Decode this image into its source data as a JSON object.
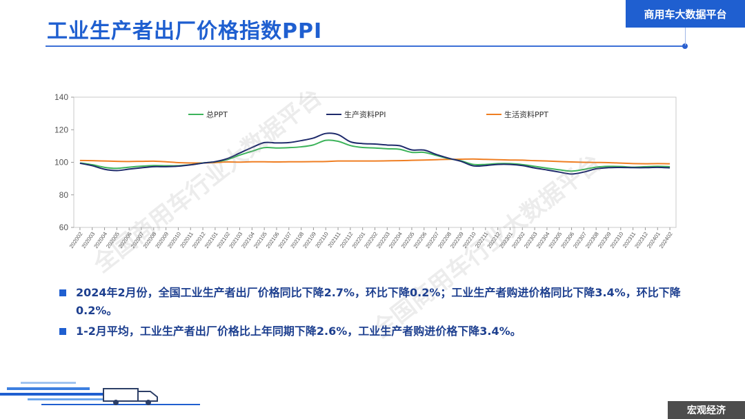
{
  "header": {
    "title": "工业生产者出厂价格指数PPI",
    "brand": "商用车大数据平台"
  },
  "footer": {
    "section": "宏观经济"
  },
  "watermark": "全国商用车行业大数据平台",
  "bullets": [
    "2024年2月份，全国工业生产者出厂价格同比下降2.7%，环比下降0.2%；工业生产者购进价格同比下降3.4%，环比下降0.2%。",
    "1-2月平均，工业生产者出厂价格比上年同期下降2.6%，工业生产者购进价格下降3.4%。"
  ],
  "colors": {
    "accent": "#1f5fd0",
    "series_total": "#3cb35a",
    "series_production": "#1e2a6b",
    "series_living": "#ef7e22"
  },
  "chart_data": {
    "type": "line",
    "ylim": [
      60,
      140
    ],
    "yticks": [
      60,
      80,
      100,
      120,
      140
    ],
    "grid": false,
    "legend": "top",
    "categories": [
      "202002",
      "202003",
      "202004",
      "202005",
      "202006",
      "202007",
      "202008",
      "202009",
      "202010",
      "202011",
      "202012",
      "202101",
      "202102",
      "202103",
      "202104",
      "202105",
      "202106",
      "202107",
      "202108",
      "202109",
      "202110",
      "202111",
      "202112",
      "202201",
      "202202",
      "202203",
      "202204",
      "202205",
      "202206",
      "202207",
      "202208",
      "202209",
      "202210",
      "202211",
      "202212",
      "202301",
      "202302",
      "202303",
      "202304",
      "202305",
      "202306",
      "202307",
      "202308",
      "202309",
      "202310",
      "202311",
      "202312",
      "202401",
      "202402"
    ],
    "series": [
      {
        "name": "总PPT",
        "color": "#3cb35a",
        "values": [
          99.6,
          98.5,
          96.9,
          96.3,
          97.0,
          97.6,
          98.0,
          97.9,
          97.9,
          98.5,
          99.6,
          100.3,
          101.7,
          104.4,
          106.8,
          109.0,
          108.8,
          109.0,
          109.5,
          110.7,
          113.5,
          112.9,
          110.3,
          109.1,
          108.8,
          108.3,
          108.0,
          106.1,
          106.1,
          104.2,
          102.3,
          100.9,
          98.7,
          98.7,
          99.2,
          99.2,
          98.6,
          97.5,
          96.4,
          95.4,
          94.6,
          95.6,
          97.0,
          97.5,
          97.4,
          97.0,
          97.3,
          97.5,
          97.3
        ]
      },
      {
        "name": "生产资料PPI",
        "color": "#1e2a6b",
        "values": [
          99.4,
          97.9,
          95.7,
          94.9,
          95.8,
          96.6,
          97.3,
          97.3,
          97.6,
          98.4,
          99.5,
          100.4,
          102.3,
          105.7,
          109.1,
          112.1,
          111.9,
          112.1,
          113.3,
          114.9,
          117.7,
          117.0,
          112.6,
          111.5,
          111.2,
          110.6,
          110.2,
          107.6,
          107.5,
          104.8,
          102.5,
          100.6,
          97.8,
          98.0,
          98.7,
          98.7,
          98.0,
          96.5,
          95.3,
          94.0,
          92.8,
          94.0,
          96.0,
          96.7,
          96.8,
          96.7,
          96.7,
          96.9,
          96.6
        ]
      },
      {
        "name": "生活资料PPT",
        "color": "#ef7e22",
        "values": [
          101.1,
          101.0,
          100.8,
          100.6,
          100.5,
          100.6,
          100.7,
          100.3,
          99.8,
          99.6,
          99.6,
          99.8,
          100.2,
          100.1,
          100.3,
          100.3,
          100.2,
          100.3,
          100.3,
          100.4,
          100.5,
          100.8,
          100.8,
          100.8,
          100.8,
          100.9,
          101.0,
          101.2,
          101.4,
          101.6,
          101.8,
          101.9,
          102.0,
          101.8,
          101.6,
          101.4,
          101.3,
          101.0,
          100.8,
          100.5,
          100.2,
          100.0,
          99.9,
          99.8,
          99.5,
          99.2,
          99.1,
          99.2,
          99.1
        ]
      }
    ]
  }
}
